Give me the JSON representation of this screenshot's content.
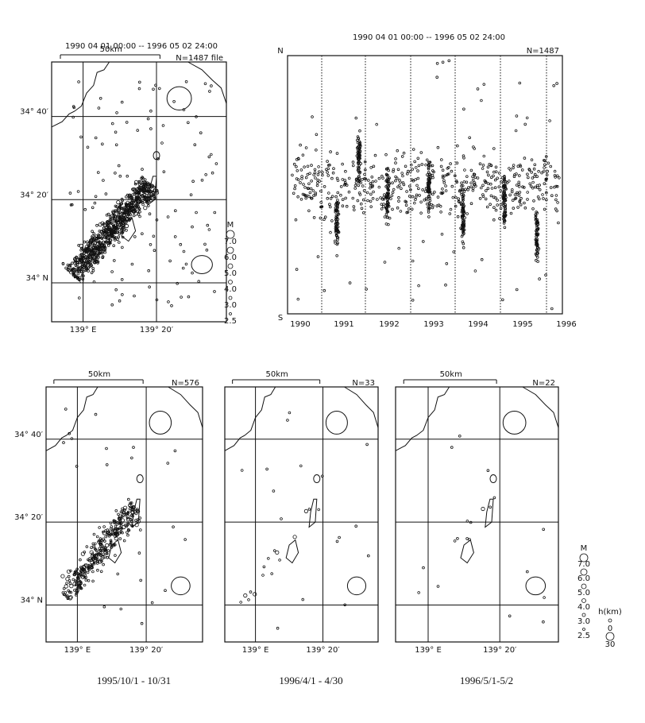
{
  "top_left_map": {
    "period": "1990 04 01 00:00 -- 1996 05 02 24:00",
    "scale": "50km",
    "count": "N=1487 file",
    "lat_labels": [
      "34° 40′",
      "34° 20′",
      "34° N"
    ],
    "lon_labels": [
      "139° E",
      "139° 20′"
    ]
  },
  "magnitude_legend_top": {
    "title": "M",
    "labels": [
      "7.0",
      "6.0",
      "5.0",
      "4.0",
      "3.0",
      "2.5"
    ]
  },
  "time_plot": {
    "period": "1990 04 01 00:00 -- 1996 05 02 24:00",
    "north": "N",
    "south": "S",
    "count": "N=1487",
    "years": [
      "1990",
      "1991",
      "1992",
      "1993",
      "1994",
      "1995",
      "1996"
    ]
  },
  "bottom_maps": [
    {
      "scale": "50km",
      "count": "N=576",
      "lat_labels": [
        "34° 40′",
        "34° 20′",
        "34° N"
      ],
      "lon_labels": [
        "139° E",
        "139° 20′"
      ],
      "caption": "1995/10/1 - 10/31"
    },
    {
      "scale": "50km",
      "count": "N=33",
      "lon_labels": [
        "139° E",
        "139° 20′"
      ],
      "caption": "1996/4/1 - 4/30"
    },
    {
      "scale": "50km",
      "count": "N=22",
      "lon_labels": [
        "139° E",
        "139° 20′"
      ],
      "caption": "1996/5/1-5/2"
    }
  ],
  "legend_bottom": {
    "magnitude_title": "M",
    "magnitude_labels": [
      "7.0",
      "6.0",
      "5.0",
      "4.0",
      "3.0",
      "2.5"
    ],
    "depth_title": "h(km)",
    "depth_labels": [
      "0",
      "30"
    ]
  }
}
